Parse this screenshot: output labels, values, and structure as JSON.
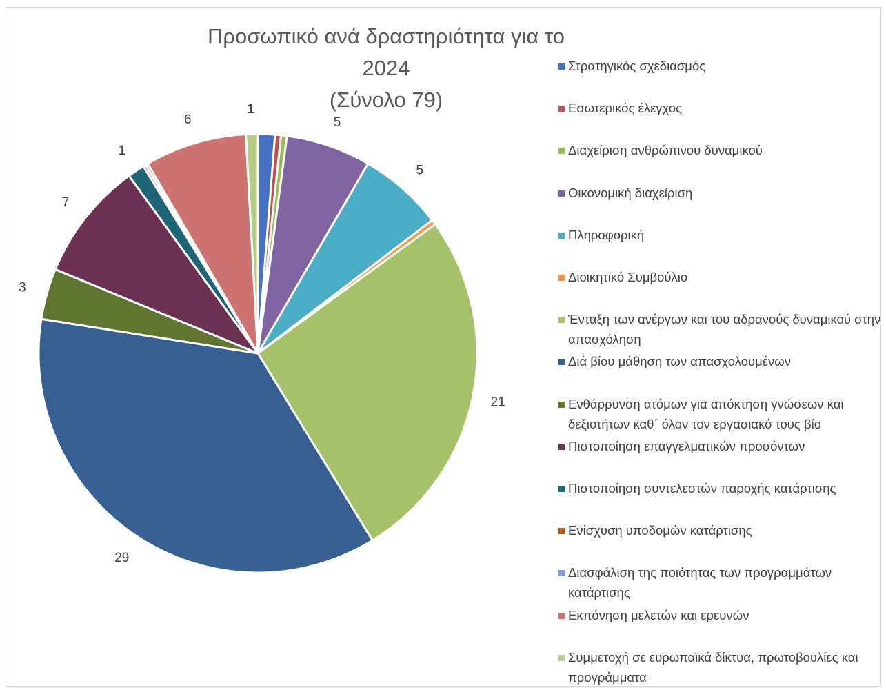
{
  "chart_data": {
    "type": "pie",
    "title": "Προσωπικό ανά δραστηριότητα για το 2024",
    "subtitle": "(Σύνολο 79)",
    "legend_position": "right",
    "series": [
      {
        "name": "Στρατηγικός σχεδιασμός",
        "value": 1,
        "label": "1",
        "color": "#4472C4"
      },
      {
        "name": "Εσωτερικός έλεγχος",
        "value": 0.35,
        "label": "",
        "color": "#C0504D"
      },
      {
        "name": "Διαχείριση ανθρώπινου δυναμικού",
        "value": 0.35,
        "label": "",
        "color": "#9BBB59"
      },
      {
        "name": "Οικονομική διαχείριση",
        "value": 5,
        "label": "5",
        "color": "#8064A2"
      },
      {
        "name": "Πληροφορική",
        "value": 5,
        "label": "5",
        "color": "#4BACC6"
      },
      {
        "name": "Διοικητικό Συμβούλιο",
        "value": 0.3,
        "label": "",
        "color": "#F79646"
      },
      {
        "name": "Ένταξη των ανέργων και του αδρανούς δυναμικού στην απασχόληση",
        "value": 21,
        "label": "21",
        "color": "#A5C26B"
      },
      {
        "name": "Διά βίου μάθηση των απασχολουμένων",
        "value": 29,
        "label": "29",
        "color": "#375F92"
      },
      {
        "name": "Ενθάρρυνση ατόμων για απόκτηση γνώσεων και δεξιοτήτων καθ΄ όλον τον εργασιακό τους βίο",
        "value": 3,
        "label": "3",
        "color": "#5F7530"
      },
      {
        "name": "Πιστοποίηση επαγγελματικών προσόντων",
        "value": 7,
        "label": "7",
        "color": "#6A3152"
      },
      {
        "name": "Πιστοποίηση συντελεστών παροχής κατάρτισης",
        "value": 1,
        "label": "1",
        "color": "#1E6677"
      },
      {
        "name": "Ενίσχυση υποδομών κατάρτισης",
        "value": 0.15,
        "label": "",
        "color": "#B6580F"
      },
      {
        "name": "Διασφάλιση της ποιότητας των προγραμμάτων κατάρτισης",
        "value": 0.15,
        "label": "",
        "color": "#7F9FD0"
      },
      {
        "name": "Εκπόνηση μελετών και ερευνών",
        "value": 6,
        "label": "6",
        "color": "#CD7371"
      },
      {
        "name": "Συμμετοχή σε ευρωπαϊκά δίκτυα, πρωτοβουλίες και προγράμματα",
        "value": 0.7,
        "label": "1",
        "color": "#B4CC84"
      }
    ]
  }
}
